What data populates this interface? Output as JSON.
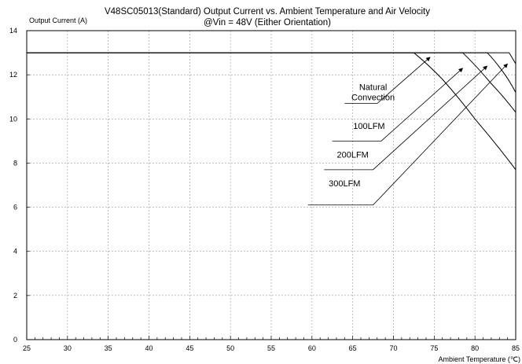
{
  "chart_data": {
    "type": "line",
    "title_line1": "V48SC05013(Standard)  Output Current vs. Ambient Temperature and Air Velocity",
    "title_line2": "@Vin = 48V (Either Orientation)",
    "ylabel": "Output Current (A)",
    "xlabel": "Ambient Temperature (℃)",
    "xlim": [
      25,
      85
    ],
    "ylim": [
      0,
      14
    ],
    "x_ticks": [
      25,
      30,
      35,
      40,
      45,
      50,
      55,
      60,
      65,
      70,
      75,
      80,
      85
    ],
    "y_ticks": [
      0,
      2,
      4,
      6,
      8,
      10,
      12,
      14
    ],
    "grid": true,
    "series": [
      {
        "name": "Natural Convection",
        "x": [
          25,
          72.5,
          76,
          80,
          85
        ],
        "y": [
          13,
          13,
          11.8,
          10.0,
          7.7
        ]
      },
      {
        "name": "100LFM",
        "x": [
          25,
          78.5,
          82,
          85
        ],
        "y": [
          13,
          13,
          11.6,
          10.3
        ]
      },
      {
        "name": "200LFM",
        "x": [
          25,
          81.5,
          83.5,
          85
        ],
        "y": [
          13,
          13,
          12.1,
          11.2
        ]
      },
      {
        "name": "300LFM",
        "x": [
          25,
          84.2,
          85
        ],
        "y": [
          13,
          13,
          12.5
        ]
      }
    ],
    "annotations": [
      {
        "lines": [
          "Natural",
          "Convection"
        ],
        "label_x": 67.5,
        "label_y": 10.7,
        "line": [
          [
            64,
            10.7
          ],
          [
            68,
            10.7
          ],
          [
            74.5,
            12.8
          ]
        ]
      },
      {
        "lines": [
          "100LFM"
        ],
        "label_x": 67,
        "label_y": 9.4,
        "line": [
          [
            62.5,
            9.0
          ],
          [
            68.5,
            9.0
          ],
          [
            78.5,
            12.3
          ]
        ]
      },
      {
        "lines": [
          "200LFM"
        ],
        "label_x": 65,
        "label_y": 8.1,
        "line": [
          [
            61.5,
            7.7
          ],
          [
            67.5,
            7.7
          ],
          [
            81.5,
            12.4
          ]
        ]
      },
      {
        "lines": [
          "300LFM"
        ],
        "label_x": 64,
        "label_y": 6.8,
        "line": [
          [
            59.5,
            6.1
          ],
          [
            67.5,
            6.1
          ],
          [
            84,
            12.5
          ]
        ]
      }
    ]
  }
}
